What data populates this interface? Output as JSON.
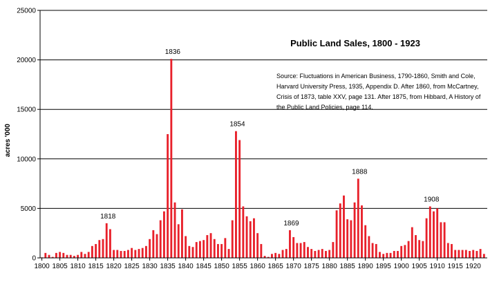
{
  "chart_data": {
    "type": "bar",
    "title": "Public Land Sales, 1800 - 1923",
    "ylabel": "acres '000",
    "xlabel": "",
    "ylim": [
      0,
      25000
    ],
    "yticks": [
      0,
      5000,
      10000,
      15000,
      20000,
      25000
    ],
    "xticks": [
      1800,
      1805,
      1810,
      1815,
      1820,
      1825,
      1830,
      1835,
      1840,
      1845,
      1850,
      1855,
      1860,
      1865,
      1870,
      1875,
      1880,
      1885,
      1890,
      1895,
      1900,
      1905,
      1910,
      1915,
      1920
    ],
    "grid": true,
    "bar_color": "#e8202a",
    "x": [
      1800,
      1801,
      1802,
      1803,
      1804,
      1805,
      1806,
      1807,
      1808,
      1809,
      1810,
      1811,
      1812,
      1813,
      1814,
      1815,
      1816,
      1817,
      1818,
      1819,
      1820,
      1821,
      1822,
      1823,
      1824,
      1825,
      1826,
      1827,
      1828,
      1829,
      1830,
      1831,
      1832,
      1833,
      1834,
      1835,
      1836,
      1837,
      1838,
      1839,
      1840,
      1841,
      1842,
      1843,
      1844,
      1845,
      1846,
      1847,
      1848,
      1849,
      1850,
      1851,
      1852,
      1853,
      1854,
      1855,
      1856,
      1857,
      1858,
      1859,
      1860,
      1861,
      1862,
      1863,
      1864,
      1865,
      1866,
      1867,
      1868,
      1869,
      1870,
      1871,
      1872,
      1873,
      1874,
      1875,
      1876,
      1877,
      1878,
      1879,
      1880,
      1881,
      1882,
      1883,
      1884,
      1885,
      1886,
      1887,
      1888,
      1889,
      1890,
      1891,
      1892,
      1893,
      1894,
      1895,
      1896,
      1897,
      1898,
      1899,
      1900,
      1901,
      1902,
      1903,
      1904,
      1905,
      1906,
      1907,
      1908,
      1909,
      1910,
      1911,
      1912,
      1913,
      1914,
      1915,
      1916,
      1917,
      1918,
      1919,
      1920,
      1921,
      1922,
      1923
    ],
    "values": [
      50,
      500,
      300,
      100,
      500,
      600,
      500,
      300,
      300,
      200,
      300,
      600,
      400,
      600,
      1200,
      1400,
      1800,
      1900,
      3500,
      2900,
      800,
      800,
      700,
      700,
      800,
      1000,
      800,
      900,
      1000,
      1200,
      1900,
      2800,
      2400,
      3800,
      4700,
      12500,
      20100,
      5600,
      3400,
      4900,
      2200,
      1200,
      1100,
      1600,
      1700,
      1800,
      2300,
      2500,
      1900,
      1400,
      1400,
      2000,
      900,
      3800,
      12800,
      11900,
      5200,
      4200,
      3700,
      4000,
      2500,
      1400,
      200,
      100,
      400,
      500,
      400,
      800,
      900,
      2800,
      2100,
      1500,
      1500,
      1600,
      1100,
      900,
      700,
      800,
      900,
      700,
      800,
      1600,
      4800,
      5500,
      6300,
      3900,
      3800,
      5600,
      8000,
      5300,
      3300,
      2200,
      1500,
      1400,
      600,
      400,
      500,
      500,
      700,
      700,
      1200,
      1300,
      1700,
      3100,
      2300,
      1800,
      1700,
      4000,
      5200,
      4700,
      5000,
      3600,
      3600,
      1500,
      1400,
      800,
      800,
      800,
      800,
      700,
      800,
      700,
      900,
      400
    ],
    "annotations": [
      "1818",
      "1836",
      "1854",
      "1869",
      "1888",
      "1908"
    ],
    "source": [
      "Source: Fluctuations in American Business, 1790-1860, Smith and Cole,",
      "Harvard University Press, 1935,  Appendix D.  After 1860, from McCartney,",
      "Crisis of 1873, table XXV, page 131.  After 1875, from Hibbard, A History of",
      "the Public Land Policies, page 114."
    ]
  }
}
